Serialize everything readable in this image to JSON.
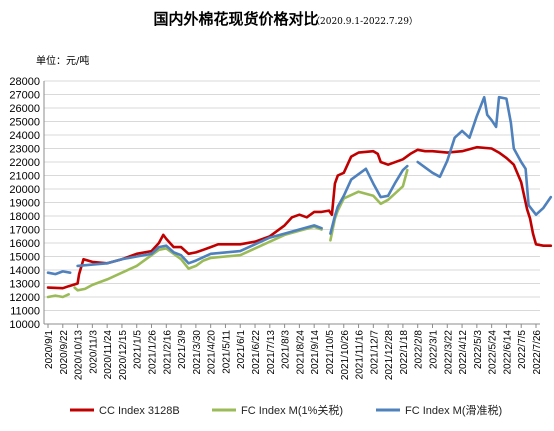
{
  "chart_data": {
    "type": "line",
    "title": "国内外棉花现货价格对比",
    "subtitle": "（2020.9.1-2022.7.29）",
    "ylabel": "单位：元/吨",
    "ylim": [
      10000,
      28000
    ],
    "yticks": [
      10000,
      11000,
      12000,
      13000,
      14000,
      15000,
      16000,
      17000,
      18000,
      19000,
      20000,
      21000,
      22000,
      23000,
      24000,
      25000,
      26000,
      27000,
      28000
    ],
    "xticks": [
      "2020/9/1",
      "2020/9/22",
      "2020/10/13",
      "2020/11/3",
      "2020/11/24",
      "2020/12/15",
      "2021/1/5",
      "2021/1/26",
      "2021/2/16",
      "2021/3/9",
      "2021/3/30",
      "2021/4/20",
      "2021/5/11",
      "2021/6/1",
      "2021/6/22",
      "2021/7/13",
      "2021/8/3",
      "2021/8/24",
      "2021/9/14",
      "2021/10/5",
      "2021/10/26",
      "2021/11/16",
      "2021/12/7",
      "2021/12/28",
      "2022/1/18",
      "2022/2/8",
      "2022/3/1",
      "2022/3/22",
      "2022/4/12",
      "2022/5/3",
      "2022/5/24",
      "2022/6/14",
      "2022/7/5",
      "2022/7/26"
    ],
    "grid": true,
    "legend_position": "bottom",
    "series": [
      {
        "name": "CC Index 3128B",
        "color": "#c00000",
        "points": [
          [
            0,
            12700
          ],
          [
            1,
            12650
          ],
          [
            1.4,
            12800
          ],
          [
            2,
            13000
          ],
          [
            2.1,
            13700
          ],
          [
            2.4,
            14800
          ],
          [
            3,
            14600
          ],
          [
            4,
            14500
          ],
          [
            5,
            14800
          ],
          [
            6,
            15200
          ],
          [
            7,
            15400
          ],
          [
            7.5,
            16000
          ],
          [
            7.8,
            16600
          ],
          [
            8,
            16300
          ],
          [
            8.5,
            15700
          ],
          [
            9,
            15700
          ],
          [
            9.5,
            15200
          ],
          [
            10,
            15300
          ],
          [
            10.5,
            15500
          ],
          [
            11,
            15700
          ],
          [
            11.5,
            15900
          ],
          [
            12,
            15900
          ],
          [
            13,
            15900
          ],
          [
            14,
            16100
          ],
          [
            15,
            16500
          ],
          [
            16,
            17300
          ],
          [
            16.5,
            17900
          ],
          [
            17,
            18100
          ],
          [
            17.5,
            17900
          ],
          [
            18,
            18300
          ],
          [
            18.5,
            18300
          ],
          [
            19,
            18400
          ],
          [
            19.2,
            18100
          ],
          [
            19.4,
            20400
          ],
          [
            19.6,
            21000
          ],
          [
            20,
            21200
          ],
          [
            20.5,
            22400
          ],
          [
            21,
            22700
          ],
          [
            22,
            22800
          ],
          [
            22.3,
            22600
          ],
          [
            22.5,
            22000
          ],
          [
            23,
            21800
          ],
          [
            24,
            22200
          ],
          [
            24.5,
            22600
          ],
          [
            25,
            22900
          ],
          [
            25.5,
            22800
          ],
          [
            26,
            22800
          ],
          [
            27,
            22700
          ],
          [
            28,
            22800
          ],
          [
            29,
            23100
          ],
          [
            30,
            23000
          ],
          [
            30.5,
            22700
          ],
          [
            31,
            22300
          ],
          [
            31.5,
            21800
          ],
          [
            32,
            20500
          ],
          [
            32.4,
            18500
          ],
          [
            32.6,
            17800
          ],
          [
            32.8,
            16700
          ],
          [
            33,
            15900
          ],
          [
            33.5,
            15800
          ],
          [
            34,
            15800
          ]
        ]
      },
      {
        "name": "FC Index M(1%关税)",
        "color": "#9bbb59",
        "points": [
          [
            0,
            12000
          ],
          [
            0.5,
            12100
          ],
          [
            1,
            12000
          ],
          [
            1.4,
            12200
          ],
          [
            1.5,
            null
          ],
          [
            1.8,
            12700
          ],
          [
            2,
            12500
          ],
          [
            2.5,
            12600
          ],
          [
            3,
            12900
          ],
          [
            4,
            13300
          ],
          [
            5,
            13800
          ],
          [
            6,
            14300
          ],
          [
            7,
            15100
          ],
          [
            7.5,
            15500
          ],
          [
            8,
            15600
          ],
          [
            8.5,
            15200
          ],
          [
            9,
            14800
          ],
          [
            9.5,
            14100
          ],
          [
            10,
            14300
          ],
          [
            10.5,
            14700
          ],
          [
            11,
            14900
          ],
          [
            12,
            15000
          ],
          [
            13,
            15100
          ],
          [
            14,
            15600
          ],
          [
            15,
            16100
          ],
          [
            16,
            16600
          ],
          [
            17,
            16900
          ],
          [
            18,
            17200
          ],
          [
            18.5,
            17000
          ],
          [
            18.6,
            null
          ],
          [
            19.1,
            16200
          ],
          [
            19.4,
            17800
          ],
          [
            19.6,
            18400
          ],
          [
            20,
            19300
          ],
          [
            21,
            19800
          ],
          [
            22,
            19500
          ],
          [
            22.5,
            18900
          ],
          [
            23,
            19200
          ],
          [
            24,
            20200
          ],
          [
            24.3,
            21400
          ]
        ]
      },
      {
        "name": "FC Index M(滑准税)",
        "color": "#4f81bd",
        "points": [
          [
            0,
            13800
          ],
          [
            0.5,
            13700
          ],
          [
            1,
            13900
          ],
          [
            1.5,
            13800
          ],
          [
            1.6,
            null
          ],
          [
            2,
            14300
          ],
          [
            3,
            14400
          ],
          [
            4,
            14500
          ],
          [
            5,
            14800
          ],
          [
            6,
            15000
          ],
          [
            7,
            15200
          ],
          [
            7.5,
            15700
          ],
          [
            8,
            15800
          ],
          [
            8.5,
            15300
          ],
          [
            9,
            15100
          ],
          [
            9.5,
            14500
          ],
          [
            10,
            14700
          ],
          [
            11,
            15200
          ],
          [
            12,
            15300
          ],
          [
            13,
            15400
          ],
          [
            14,
            15900
          ],
          [
            15,
            16400
          ],
          [
            16,
            16700
          ],
          [
            17,
            17000
          ],
          [
            18,
            17300
          ],
          [
            18.5,
            17100
          ],
          [
            18.6,
            null
          ],
          [
            19.1,
            16700
          ],
          [
            19.4,
            18000
          ],
          [
            19.6,
            18700
          ],
          [
            20,
            19500
          ],
          [
            20.5,
            20700
          ],
          [
            21,
            21100
          ],
          [
            21.5,
            21500
          ],
          [
            22,
            20400
          ],
          [
            22.5,
            19400
          ],
          [
            23,
            19500
          ],
          [
            23.5,
            20500
          ],
          [
            24,
            21400
          ],
          [
            24.3,
            21700
          ],
          [
            24.4,
            null
          ],
          [
            25,
            22000
          ],
          [
            25.5,
            21600
          ],
          [
            26,
            21200
          ],
          [
            26.5,
            20900
          ],
          [
            27,
            22100
          ],
          [
            27.5,
            23800
          ],
          [
            28,
            24300
          ],
          [
            28.5,
            23800
          ],
          [
            29,
            25400
          ],
          [
            29.5,
            26800
          ],
          [
            29.7,
            25500
          ],
          [
            30,
            25100
          ],
          [
            30.3,
            24600
          ],
          [
            30.5,
            26800
          ],
          [
            31,
            26700
          ],
          [
            31.3,
            24900
          ],
          [
            31.5,
            23000
          ],
          [
            32,
            22000
          ],
          [
            32.3,
            21500
          ],
          [
            32.5,
            18800
          ],
          [
            33,
            18100
          ],
          [
            33.5,
            18600
          ],
          [
            34,
            19400
          ]
        ]
      }
    ]
  }
}
